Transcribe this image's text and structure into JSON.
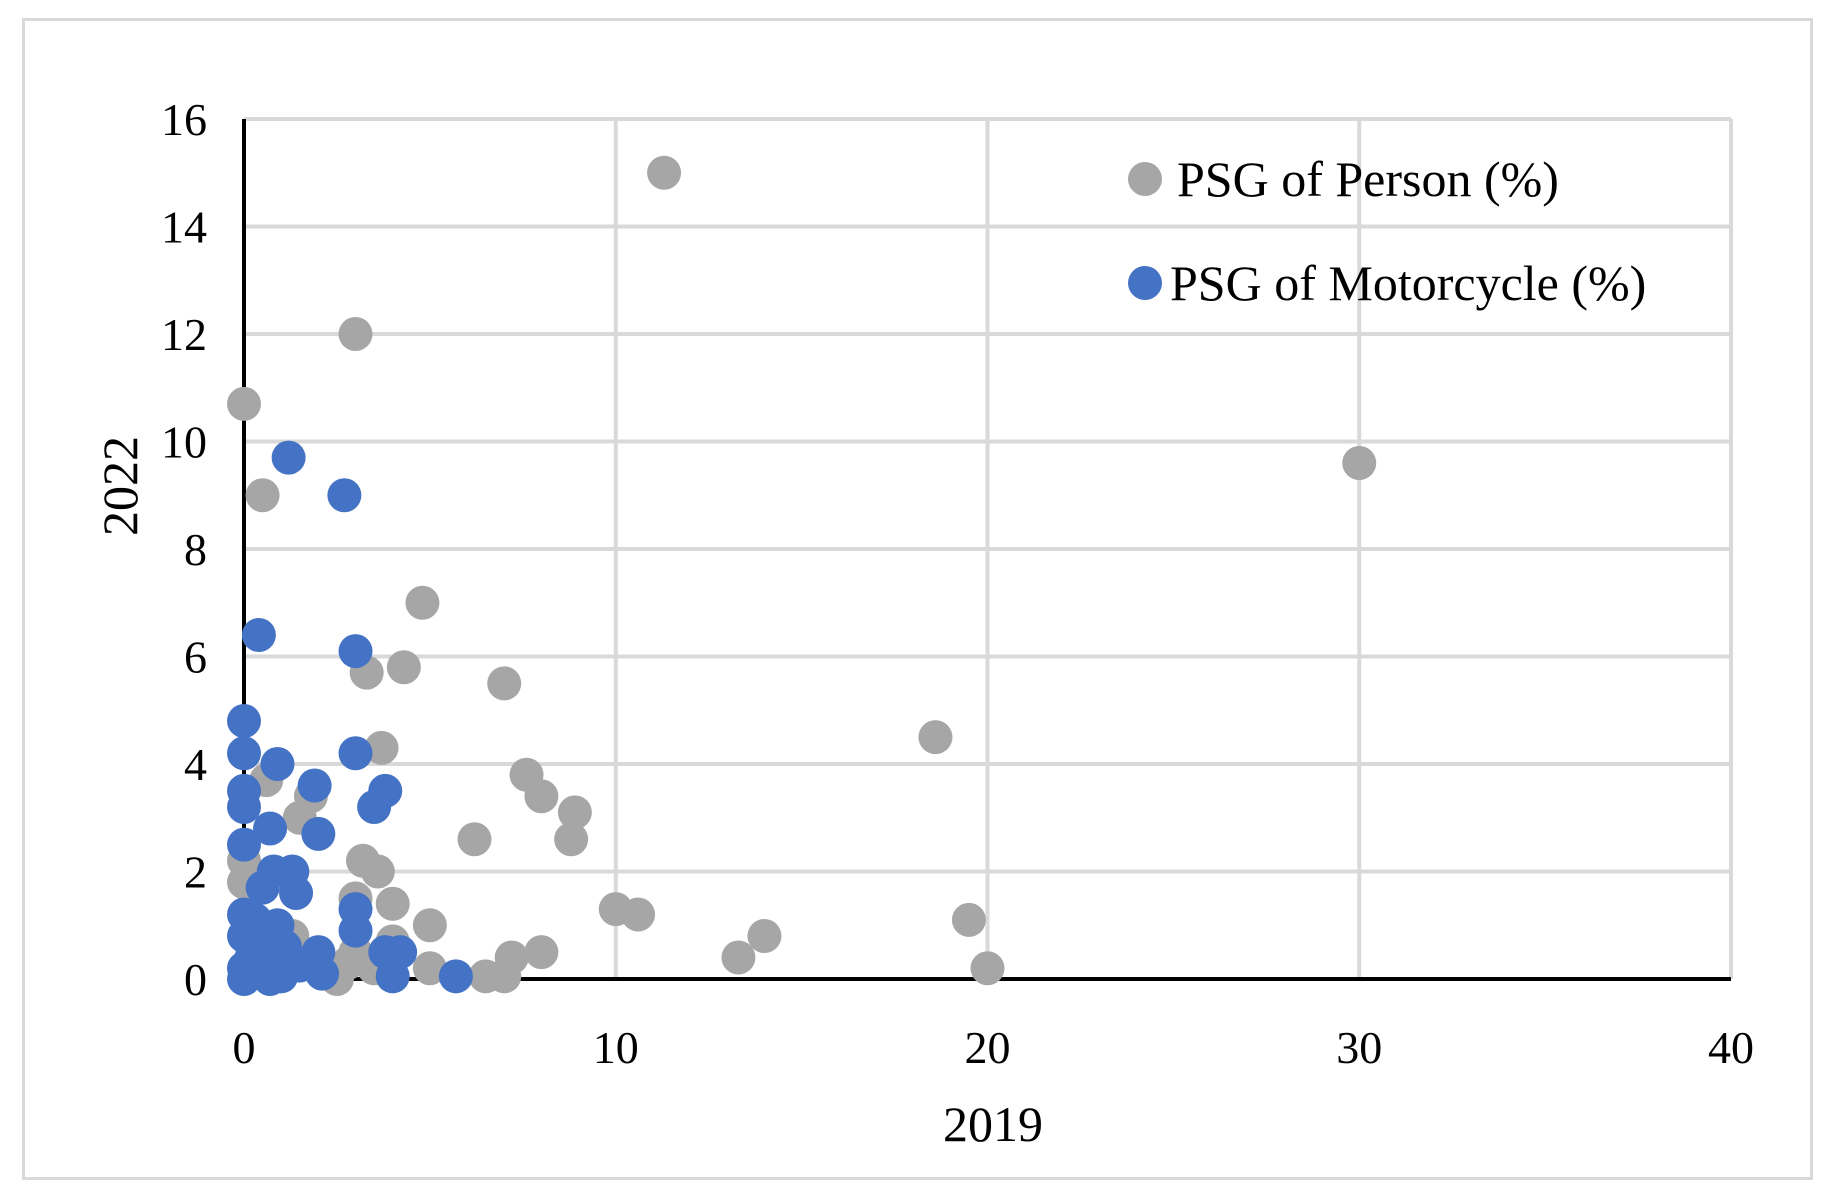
{
  "chart_data": {
    "type": "scatter",
    "title": "",
    "xlabel": "2019",
    "ylabel": "2022",
    "xlim": [
      0,
      40
    ],
    "ylim": [
      0,
      16
    ],
    "x_ticks": [
      "0",
      "10",
      "20",
      "30",
      "40"
    ],
    "y_ticks": [
      "0",
      "2",
      "4",
      "6",
      "8",
      "10",
      "12",
      "14",
      "16"
    ],
    "grid": true,
    "legend_position": "top-right",
    "series": [
      {
        "name": "PSG of Person (%)",
        "color": "#a6a6a6",
        "points": [
          [
            11.3,
            15.0
          ],
          [
            3.0,
            12.0
          ],
          [
            0.0,
            10.7
          ],
          [
            0.5,
            9.0
          ],
          [
            30.0,
            9.6
          ],
          [
            4.8,
            7.0
          ],
          [
            4.3,
            5.8
          ],
          [
            3.3,
            5.7
          ],
          [
            7.0,
            5.5
          ],
          [
            18.6,
            4.5
          ],
          [
            3.7,
            4.3
          ],
          [
            7.6,
            3.8
          ],
          [
            8.0,
            3.4
          ],
          [
            8.9,
            3.1
          ],
          [
            0.6,
            3.7
          ],
          [
            1.5,
            3.0
          ],
          [
            1.8,
            3.4
          ],
          [
            6.2,
            2.6
          ],
          [
            8.8,
            2.6
          ],
          [
            3.2,
            2.2
          ],
          [
            3.6,
            2.0
          ],
          [
            0.0,
            2.2
          ],
          [
            0.0,
            1.8
          ],
          [
            3.0,
            1.5
          ],
          [
            4.0,
            1.4
          ],
          [
            10.0,
            1.3
          ],
          [
            10.6,
            1.2
          ],
          [
            19.5,
            1.1
          ],
          [
            5.0,
            1.0
          ],
          [
            14.0,
            0.8
          ],
          [
            1.3,
            0.8
          ],
          [
            4.0,
            0.7
          ],
          [
            8.0,
            0.5
          ],
          [
            7.2,
            0.4
          ],
          [
            13.3,
            0.4
          ],
          [
            3.0,
            0.5
          ],
          [
            2.8,
            0.3
          ],
          [
            20.0,
            0.2
          ],
          [
            5.0,
            0.2
          ],
          [
            6.5,
            0.05
          ],
          [
            7.0,
            0.05
          ],
          [
            2.5,
            0.0
          ],
          [
            1.0,
            0.1
          ],
          [
            3.5,
            0.2
          ]
        ]
      },
      {
        "name": "PSG of Motorcycle (%)",
        "color": "#4472c4",
        "points": [
          [
            1.2,
            9.7
          ],
          [
            2.7,
            9.0
          ],
          [
            0.4,
            6.4
          ],
          [
            3.0,
            6.1
          ],
          [
            0.0,
            4.8
          ],
          [
            0.0,
            4.2
          ],
          [
            3.0,
            4.2
          ],
          [
            0.9,
            4.0
          ],
          [
            1.9,
            3.6
          ],
          [
            3.8,
            3.5
          ],
          [
            0.0,
            3.5
          ],
          [
            0.0,
            3.2
          ],
          [
            3.5,
            3.2
          ],
          [
            0.7,
            2.8
          ],
          [
            2.0,
            2.7
          ],
          [
            0.0,
            2.5
          ],
          [
            0.8,
            2.0
          ],
          [
            1.3,
            2.0
          ],
          [
            0.5,
            1.7
          ],
          [
            1.4,
            1.6
          ],
          [
            3.0,
            1.3
          ],
          [
            0.0,
            1.2
          ],
          [
            0.3,
            1.1
          ],
          [
            0.9,
            1.0
          ],
          [
            3.0,
            0.9
          ],
          [
            0.0,
            0.8
          ],
          [
            0.6,
            0.7
          ],
          [
            1.1,
            0.6
          ],
          [
            2.0,
            0.5
          ],
          [
            3.8,
            0.5
          ],
          [
            4.2,
            0.5
          ],
          [
            0.2,
            0.4
          ],
          [
            0.8,
            0.3
          ],
          [
            1.5,
            0.25
          ],
          [
            0.0,
            0.2
          ],
          [
            0.4,
            0.15
          ],
          [
            2.1,
            0.1
          ],
          [
            4.0,
            0.05
          ],
          [
            5.7,
            0.05
          ],
          [
            0.0,
            0.0
          ],
          [
            0.7,
            0.0
          ],
          [
            1.0,
            0.05
          ]
        ]
      }
    ]
  }
}
